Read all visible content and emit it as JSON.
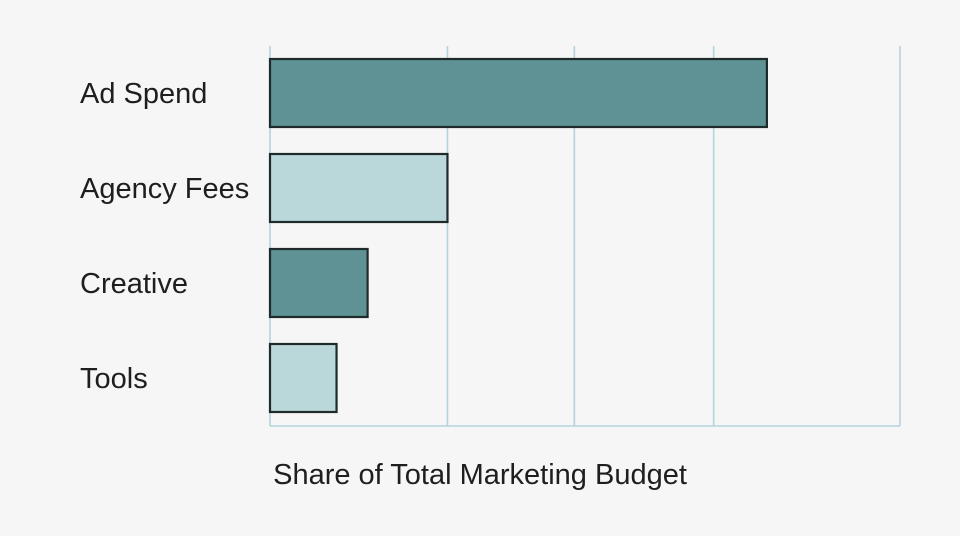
{
  "chart_data": {
    "type": "bar",
    "orientation": "horizontal",
    "categories": [
      "Ad Spend",
      "Agency Fees",
      "Creative",
      "Tools"
    ],
    "values": [
      56,
      20,
      11,
      7.5
    ],
    "xlabel": "Share of Total Marketing Budget",
    "ylabel": "",
    "xlim": [
      0,
      71
    ],
    "gridlines_x": [
      0,
      20,
      34.3,
      50,
      71
    ],
    "grid": true,
    "legend": "none",
    "bar_colors": [
      "#5f9295",
      "#bad8d9",
      "#5f9295",
      "#bad8d9"
    ],
    "bar_border_color": "#1f2a2b",
    "grid_color": "#b4d3db",
    "background": "#f5f6f5"
  }
}
